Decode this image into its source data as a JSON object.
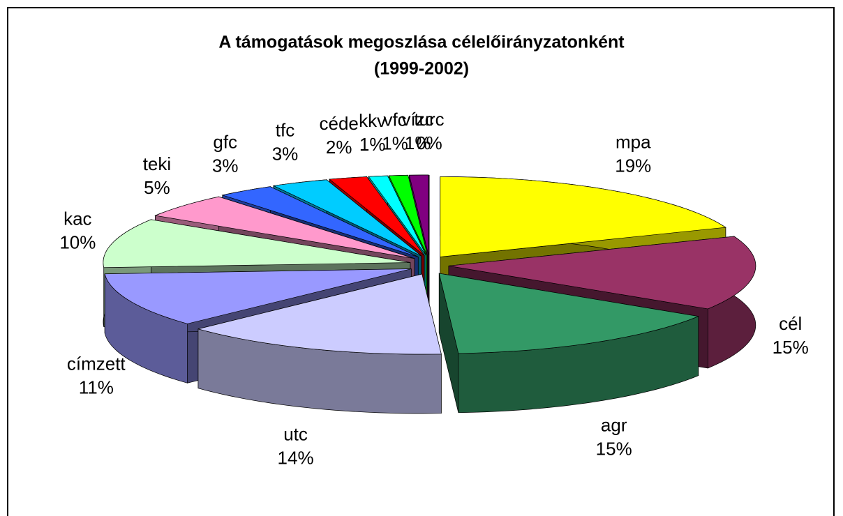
{
  "chart_data": {
    "type": "pie3d",
    "title": "A támogatások megoszlása célelőirányzatonként",
    "subtitle": "(1999-2002)",
    "categories": [
      "mpa",
      "cél",
      "agr",
      "utc",
      "címzett",
      "kac",
      "teki",
      "gfc",
      "tfc",
      "céde",
      "kkv",
      "vfc",
      "vízc",
      "turc"
    ],
    "values": [
      19,
      15,
      15,
      14,
      11,
      10,
      5,
      3,
      3,
      2,
      1,
      1,
      1,
      0
    ],
    "value_labels": [
      "19%",
      "15%",
      "15%",
      "14%",
      "11%",
      "10%",
      "5%",
      "3%",
      "3%",
      "2%",
      "1%",
      "1%",
      "1%",
      "0%"
    ],
    "colors": [
      "#ffff00",
      "#993366",
      "#339966",
      "#ccccff",
      "#9999ff",
      "#ccffcc",
      "#ff99cc",
      "#3366ff",
      "#00ccff",
      "#ff0000",
      "#00ffff",
      "#00ff00",
      "#800080",
      "#ffffff"
    ]
  }
}
